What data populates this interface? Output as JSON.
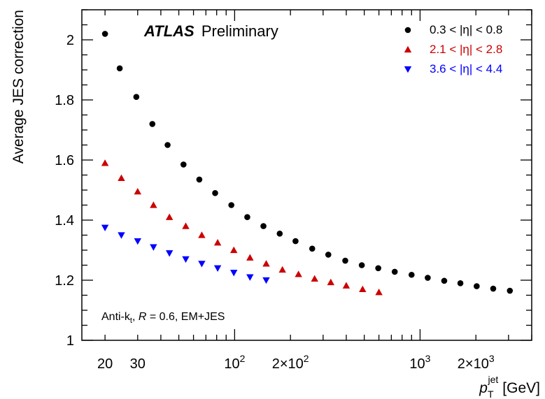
{
  "chart_data": {
    "type": "scatter",
    "xscale": "log",
    "xlim": [
      15,
      4000
    ],
    "ylim": [
      1,
      2.1
    ],
    "grid": false,
    "legend_position": "top-right",
    "ylabel": "Average JES correction",
    "xlabel_main": "p",
    "xlabel_sub": "T",
    "xlabel_sup": "jet",
    "xlabel_unit": "[GeV]",
    "experiment_label": "ATLAS",
    "status_label": "Preliminary",
    "annotation": {
      "prefix": "Anti-k",
      "sub": "t",
      "r_symbol": "R",
      "rest": " = 0.6, EM+JES"
    },
    "x_ticks": [
      {
        "value": 20,
        "base": "20",
        "exp": ""
      },
      {
        "value": 30,
        "base": "30",
        "exp": ""
      },
      {
        "value": 100,
        "base": "10",
        "exp": "2"
      },
      {
        "value": 200,
        "base": "2×10",
        "exp": "2"
      },
      {
        "value": 1000,
        "base": "10",
        "exp": "3"
      },
      {
        "value": 2000,
        "base": "2×10",
        "exp": "3"
      }
    ],
    "y_ticks": [
      {
        "value": 1,
        "label": "1"
      },
      {
        "value": 1.2,
        "label": "1.2"
      },
      {
        "value": 1.4,
        "label": "1.4"
      },
      {
        "value": 1.6,
        "label": "1.6"
      },
      {
        "value": 1.8,
        "label": "1.8"
      },
      {
        "value": 2,
        "label": "2"
      }
    ],
    "series": [
      {
        "name": "0.3 < |η| < 0.8",
        "marker": "circle",
        "color": "#000000",
        "points": [
          [
            20,
            2.02
          ],
          [
            24,
            1.905
          ],
          [
            29.5,
            1.81
          ],
          [
            36,
            1.72
          ],
          [
            43.5,
            1.65
          ],
          [
            53,
            1.585
          ],
          [
            64.5,
            1.535
          ],
          [
            78.5,
            1.49
          ],
          [
            96,
            1.45
          ],
          [
            117,
            1.41
          ],
          [
            143,
            1.38
          ],
          [
            175,
            1.355
          ],
          [
            213,
            1.33
          ],
          [
            262,
            1.305
          ],
          [
            320,
            1.285
          ],
          [
            395,
            1.265
          ],
          [
            485,
            1.25
          ],
          [
            595,
            1.24
          ],
          [
            730,
            1.228
          ],
          [
            900,
            1.218
          ],
          [
            1100,
            1.208
          ],
          [
            1350,
            1.198
          ],
          [
            1650,
            1.19
          ],
          [
            2020,
            1.18
          ],
          [
            2480,
            1.172
          ],
          [
            3050,
            1.165
          ]
        ]
      },
      {
        "name": "2.1 < |η| < 2.8",
        "marker": "triangle-up",
        "color": "#cc0000",
        "points": [
          [
            20,
            1.59
          ],
          [
            24.5,
            1.54
          ],
          [
            30,
            1.495
          ],
          [
            36.5,
            1.45
          ],
          [
            44.5,
            1.41
          ],
          [
            54.5,
            1.38
          ],
          [
            66.5,
            1.35
          ],
          [
            81,
            1.325
          ],
          [
            99,
            1.3
          ],
          [
            121,
            1.275
          ],
          [
            148,
            1.255
          ],
          [
            181,
            1.235
          ],
          [
            221,
            1.22
          ],
          [
            270,
            1.205
          ],
          [
            330,
            1.193
          ],
          [
            400,
            1.182
          ],
          [
            490,
            1.17
          ],
          [
            600,
            1.16
          ]
        ]
      },
      {
        "name": "3.6 < |η| < 4.4",
        "marker": "triangle-down",
        "color": "#0000ff",
        "points": [
          [
            20,
            1.375
          ],
          [
            24.5,
            1.35
          ],
          [
            30,
            1.33
          ],
          [
            36.5,
            1.31
          ],
          [
            44.5,
            1.29
          ],
          [
            54.5,
            1.27
          ],
          [
            66.5,
            1.255
          ],
          [
            81,
            1.24
          ],
          [
            99,
            1.225
          ],
          [
            121,
            1.21
          ],
          [
            148,
            1.2
          ]
        ]
      }
    ]
  }
}
